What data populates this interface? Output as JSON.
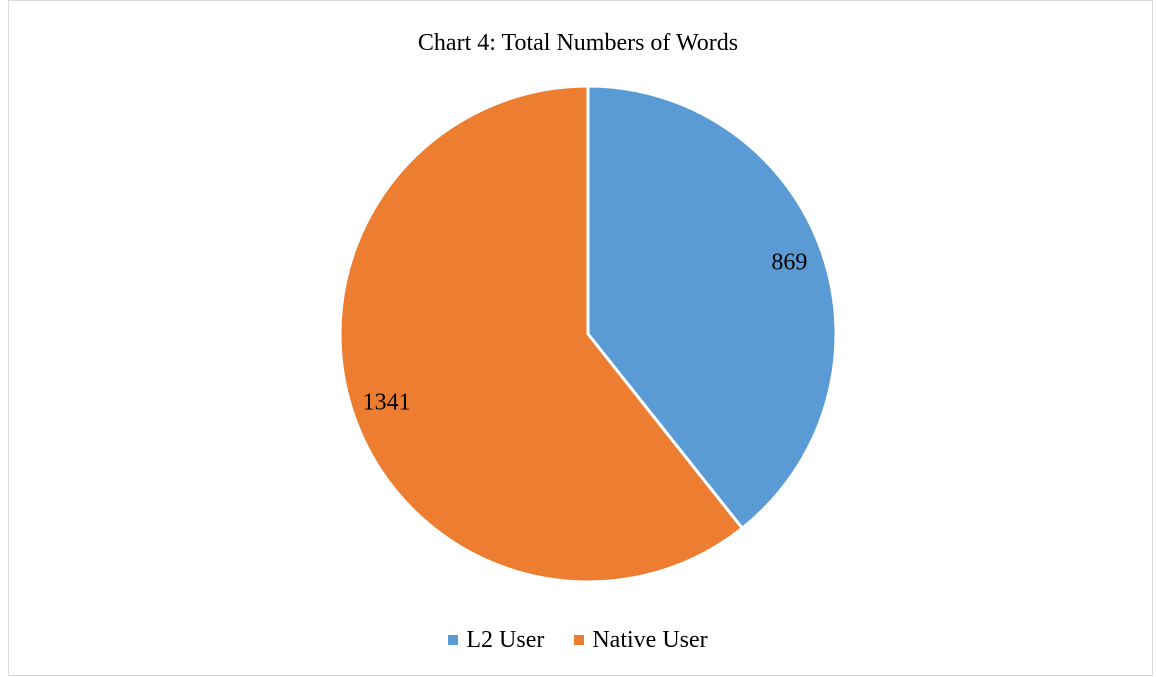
{
  "chart_data": {
    "type": "pie",
    "title": "Chart 4: Total Numbers of Words",
    "slices": [
      {
        "name": "L2 User",
        "value": 869,
        "label": "869",
        "color": "#5b9bd5"
      },
      {
        "name": "Native User",
        "value": 1341,
        "label": "1341",
        "color": "#ed7d31"
      }
    ],
    "start_angle": "12 o'clock",
    "direction": "clockwise",
    "legend_position": "bottom"
  }
}
